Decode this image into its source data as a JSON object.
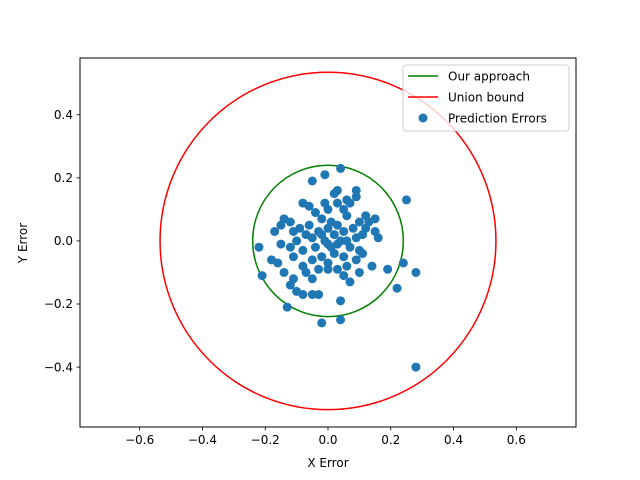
{
  "chart_data": {
    "type": "scatter",
    "title": "",
    "xlabel": "X Error",
    "ylabel": "Y Error",
    "xlim": [
      -0.79,
      0.79
    ],
    "ylim": [
      -0.59,
      0.58
    ],
    "x_ticks": [
      -0.6,
      -0.4,
      -0.2,
      0.0,
      0.2,
      0.4,
      0.6
    ],
    "y_ticks": [
      -0.4,
      -0.2,
      0.0,
      0.2,
      0.4
    ],
    "x_tick_labels": [
      "−0.6",
      "−0.4",
      "−0.2",
      "0.0",
      "0.2",
      "0.4",
      "0.6"
    ],
    "y_tick_labels": [
      "−0.4",
      "−0.2",
      "0.0",
      "0.2",
      "0.4"
    ],
    "grid": false,
    "legend_position": "top-right",
    "circles": [
      {
        "name": "Our approach",
        "radius": 0.24,
        "center": [
          0,
          0
        ],
        "color": "#008000"
      },
      {
        "name": "Union bound",
        "radius": 0.535,
        "center": [
          0,
          0
        ],
        "color": "#ff0000"
      }
    ],
    "scatter": {
      "name": "Prediction Errors",
      "color": "#1f77b4",
      "points": [
        [
          0.04,
          0.23
        ],
        [
          -0.05,
          0.19
        ],
        [
          -0.01,
          0.21
        ],
        [
          0.09,
          0.16
        ],
        [
          0.09,
          0.14
        ],
        [
          0.02,
          0.15
        ],
        [
          0.03,
          0.16
        ],
        [
          -0.08,
          0.12
        ],
        [
          0.25,
          0.13
        ],
        [
          0.07,
          0.12
        ],
        [
          0.12,
          0.08
        ],
        [
          0.15,
          0.07
        ],
        [
          -0.14,
          0.07
        ],
        [
          -0.12,
          0.06
        ],
        [
          -0.15,
          0.05
        ],
        [
          0.13,
          0.06
        ],
        [
          0.16,
          0.01
        ],
        [
          -0.17,
          0.03
        ],
        [
          0.11,
          0.02
        ],
        [
          0.15,
          0.03
        ],
        [
          -0.22,
          -0.02
        ],
        [
          -0.15,
          -0.01
        ],
        [
          -0.18,
          -0.06
        ],
        [
          -0.16,
          -0.07
        ],
        [
          0.14,
          -0.08
        ],
        [
          0.19,
          -0.09
        ],
        [
          0.24,
          -0.07
        ],
        [
          0.28,
          -0.1
        ],
        [
          0.22,
          -0.15
        ],
        [
          -0.21,
          -0.11
        ],
        [
          -0.14,
          -0.1
        ],
        [
          -0.11,
          -0.12
        ],
        [
          -0.12,
          -0.14
        ],
        [
          -0.1,
          -0.16
        ],
        [
          -0.08,
          -0.17
        ],
        [
          -0.05,
          -0.17
        ],
        [
          -0.03,
          -0.17
        ],
        [
          -0.02,
          -0.26
        ],
        [
          0.04,
          -0.25
        ],
        [
          0.04,
          -0.19
        ],
        [
          -0.13,
          -0.21
        ],
        [
          0.28,
          -0.4
        ],
        [
          0.07,
          -0.13
        ],
        [
          0.1,
          -0.1
        ],
        [
          0.05,
          -0.11
        ],
        [
          -0.05,
          -0.12
        ],
        [
          -0.07,
          -0.1
        ],
        [
          0.0,
          -0.09
        ],
        [
          -0.04,
          0.09
        ],
        [
          0.0,
          0.1
        ],
        [
          0.05,
          0.1
        ],
        [
          0.06,
          0.08
        ],
        [
          -0.02,
          0.07
        ],
        [
          0.01,
          0.06
        ],
        [
          0.03,
          0.05
        ],
        [
          -0.06,
          0.05
        ],
        [
          -0.09,
          0.04
        ],
        [
          0.08,
          0.04
        ],
        [
          0.05,
          0.03
        ],
        [
          -0.03,
          0.03
        ],
        [
          0.02,
          0.02
        ],
        [
          -0.07,
          0.02
        ],
        [
          0.09,
          0.01
        ],
        [
          -0.1,
          0.0
        ],
        [
          0.04,
          0.0
        ],
        [
          0.0,
          -0.01
        ],
        [
          -0.04,
          -0.02
        ],
        [
          0.07,
          -0.02
        ],
        [
          0.1,
          -0.03
        ],
        [
          -0.08,
          -0.03
        ],
        [
          0.02,
          -0.04
        ],
        [
          -0.02,
          -0.05
        ],
        [
          0.05,
          -0.05
        ],
        [
          -0.11,
          -0.05
        ],
        [
          0.09,
          -0.06
        ],
        [
          -0.05,
          -0.06
        ],
        [
          0.0,
          -0.07
        ],
        [
          0.06,
          -0.08
        ],
        [
          -0.08,
          -0.08
        ],
        [
          0.03,
          -0.09
        ],
        [
          -0.03,
          -0.09
        ],
        [
          0.11,
          -0.04
        ],
        [
          -0.12,
          -0.02
        ],
        [
          0.12,
          0.04
        ],
        [
          -0.11,
          0.03
        ],
        [
          0.1,
          0.06
        ],
        [
          -0.01,
          0.12
        ],
        [
          0.03,
          0.12
        ],
        [
          -0.06,
          0.11
        ],
        [
          0.06,
          0.13
        ],
        [
          0.0,
          0.04
        ],
        [
          0.01,
          -0.02
        ],
        [
          -0.01,
          0.0
        ],
        [
          0.03,
          -0.01
        ],
        [
          -0.05,
          0.01
        ],
        [
          0.06,
          0.0
        ],
        [
          -0.02,
          0.02
        ]
      ]
    }
  }
}
